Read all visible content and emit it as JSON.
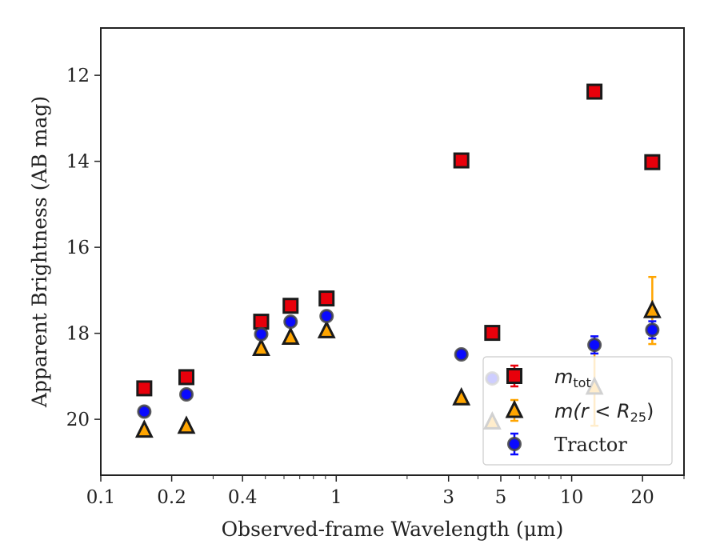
{
  "chart_data": {
    "type": "scatter",
    "title": "",
    "xlabel": "Observed-frame Wavelength (μm)",
    "ylabel": "Apparent Brightness (AB mag)",
    "xscale": "log",
    "xlim": [
      0.1,
      30
    ],
    "ylim": [
      21.3,
      10.9
    ],
    "y_inverted": true,
    "grid": false,
    "legend_position": "lower-right",
    "x_ticks": [
      {
        "value": 0.1,
        "label": "0.1"
      },
      {
        "value": 0.2,
        "label": "0.2"
      },
      {
        "value": 0.4,
        "label": "0.4"
      },
      {
        "value": 1,
        "label": "1"
      },
      {
        "value": 3,
        "label": "3"
      },
      {
        "value": 5,
        "label": "5"
      },
      {
        "value": 10,
        "label": "10"
      },
      {
        "value": 20,
        "label": "20"
      }
    ],
    "y_ticks": [
      {
        "value": 12,
        "label": "12"
      },
      {
        "value": 14,
        "label": "14"
      },
      {
        "value": 16,
        "label": "16"
      },
      {
        "value": 18,
        "label": "18"
      },
      {
        "value": 20,
        "label": "20"
      }
    ],
    "series": [
      {
        "name": "m_tot",
        "legend_main": "m",
        "legend_sub": "tot",
        "marker": "square",
        "fill": "#e8000b",
        "errorbar_color": "#e8000b",
        "points": [
          {
            "x": 0.153,
            "y": 19.28,
            "err": 0.05
          },
          {
            "x": 0.231,
            "y": 19.02,
            "err": 0.05
          },
          {
            "x": 0.48,
            "y": 17.73,
            "err": 0.03
          },
          {
            "x": 0.64,
            "y": 17.36,
            "err": 0.03
          },
          {
            "x": 0.91,
            "y": 17.19,
            "err": 0.03
          },
          {
            "x": 3.4,
            "y": 13.98,
            "err": 0.03
          },
          {
            "x": 4.6,
            "y": 17.99,
            "err": 0.03
          },
          {
            "x": 12.5,
            "y": 12.38,
            "err": 0.03
          },
          {
            "x": 22.0,
            "y": 14.02,
            "err": 0.03
          }
        ]
      },
      {
        "name": "m(r < R25)",
        "legend_main": "m(r < R",
        "legend_sub": "25",
        "legend_tail": ")",
        "marker": "triangle",
        "fill": "#ffa500",
        "errorbar_color": "#ffa500",
        "points": [
          {
            "x": 0.153,
            "y": 20.25,
            "err": 0.06
          },
          {
            "x": 0.231,
            "y": 20.16,
            "err": 0.06
          },
          {
            "x": 0.48,
            "y": 18.35,
            "err": 0.03
          },
          {
            "x": 0.64,
            "y": 18.09,
            "err": 0.03
          },
          {
            "x": 0.91,
            "y": 17.94,
            "err": 0.03
          },
          {
            "x": 3.4,
            "y": 19.5,
            "err": 0.04
          },
          {
            "x": 4.6,
            "y": 20.06,
            "err": 0.05
          },
          {
            "x": 12.5,
            "y": 19.25,
            "err": 0.9
          },
          {
            "x": 22.0,
            "y": 17.47,
            "err": 0.78
          }
        ]
      },
      {
        "name": "Tractor",
        "legend_main": "Tractor",
        "marker": "circle",
        "fill": "#0a0aff",
        "errorbar_color": "#0a0aff",
        "points": [
          {
            "x": 0.153,
            "y": 19.82,
            "err": 0.06
          },
          {
            "x": 0.231,
            "y": 19.42,
            "err": 0.06
          },
          {
            "x": 0.48,
            "y": 18.02,
            "err": 0.03
          },
          {
            "x": 0.64,
            "y": 17.73,
            "err": 0.03
          },
          {
            "x": 0.91,
            "y": 17.6,
            "err": 0.03
          },
          {
            "x": 3.4,
            "y": 18.49,
            "err": 0.03
          },
          {
            "x": 4.6,
            "y": 19.05,
            "err": 0.04
          },
          {
            "x": 12.5,
            "y": 18.27,
            "err": 0.2
          },
          {
            "x": 22.0,
            "y": 17.92,
            "err": 0.2
          }
        ]
      }
    ]
  }
}
